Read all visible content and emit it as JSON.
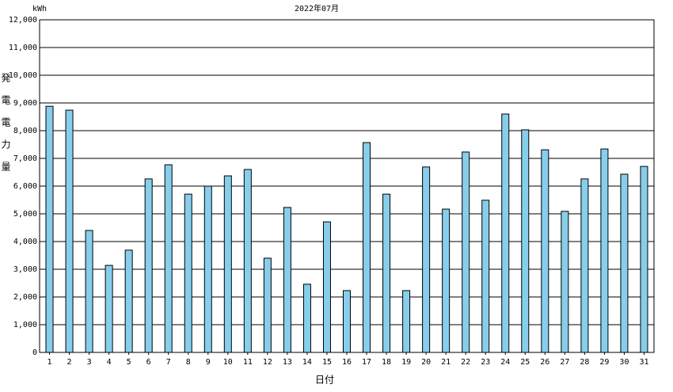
{
  "chart_data": {
    "type": "bar",
    "title": "2022年07月",
    "y_unit": "kWh",
    "y_label": "発電電力量",
    "x_label": "日付",
    "categories": [
      "1",
      "2",
      "3",
      "4",
      "5",
      "6",
      "7",
      "8",
      "9",
      "10",
      "11",
      "12",
      "13",
      "14",
      "15",
      "16",
      "17",
      "18",
      "19",
      "20",
      "21",
      "22",
      "23",
      "24",
      "25",
      "26",
      "27",
      "28",
      "29",
      "30",
      "31"
    ],
    "values": [
      8880,
      8740,
      4400,
      3140,
      3690,
      6260,
      6770,
      5710,
      6000,
      6370,
      6600,
      3400,
      5230,
      2460,
      4710,
      2230,
      7570,
      5710,
      2230,
      6690,
      5170,
      7230,
      5490,
      8600,
      8030,
      7310,
      5090,
      6260,
      7340,
      6430,
      6710
    ],
    "color": "#87ceeb",
    "ylim": [
      0,
      12000
    ],
    "yticks": [
      0,
      {
        "value": 1000,
        "label": "1,000"
      },
      {
        "value": 2000,
        "label": "2,000"
      },
      {
        "value": 3000,
        "label": "3,000"
      },
      {
        "value": 4000,
        "label": "4,000"
      },
      {
        "value": 5000,
        "label": "5,000"
      },
      {
        "value": 6000,
        "label": "6,000"
      },
      {
        "value": 7000,
        "label": "7,000"
      },
      {
        "value": 8000,
        "label": "8,000"
      },
      {
        "value": 9000,
        "label": "9,000"
      },
      {
        "value": 10000,
        "label": "10,000"
      },
      {
        "value": 11000,
        "label": "11,000"
      },
      {
        "value": 12000,
        "label": "12,000"
      }
    ],
    "grid": true
  }
}
